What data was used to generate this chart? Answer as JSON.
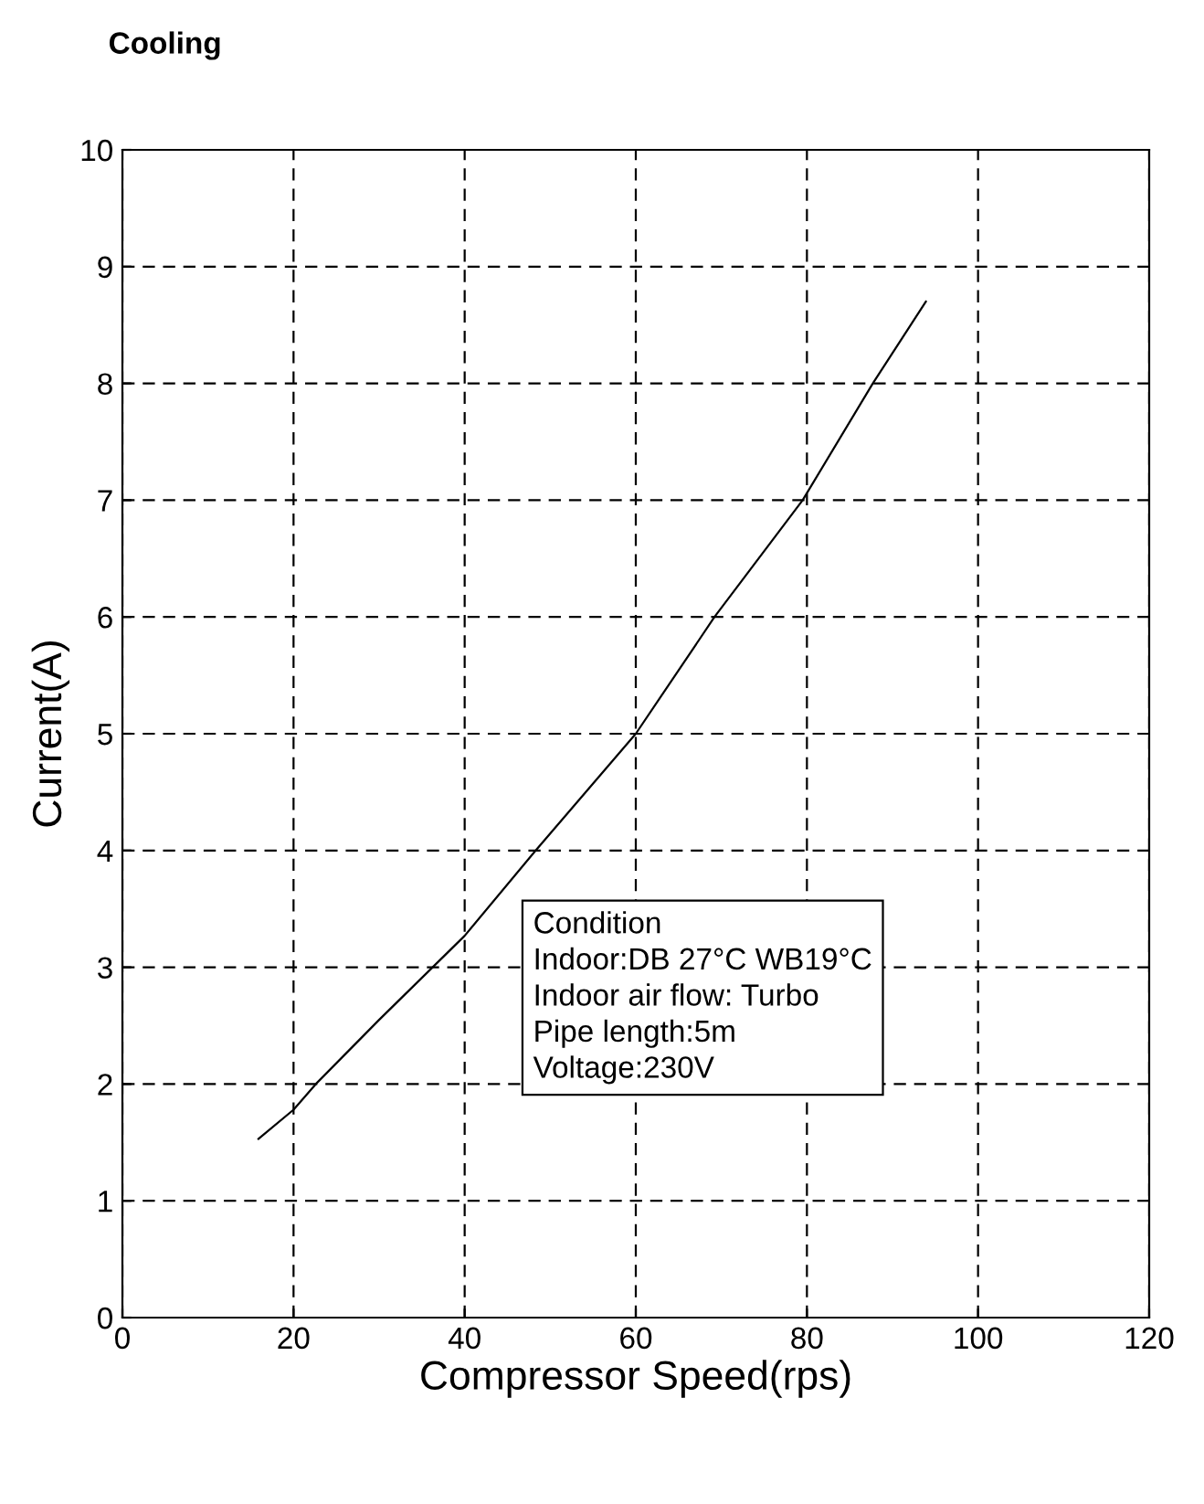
{
  "chart_data": {
    "type": "line",
    "title": "Cooling",
    "xlabel": "Compressor Speed(rps)",
    "ylabel": "Current(A)",
    "annotations": [
      "Condition\nIndoor:DB 27°C WB19°C\nIndoor air flow: Turbo\nPipe length:5m\nVoltage:230V"
    ],
    "series": [
      {
        "color": "#000000",
        "x": [
          15.9,
          20,
          22.6,
          30,
          40,
          48.3,
          60,
          69.2,
          79.5,
          87.7,
          93.9
        ],
        "values": [
          1.53,
          1.78,
          2.0,
          2.55,
          3.27,
          4.0,
          5.0,
          6.0,
          7.0,
          8.0,
          8.7
        ]
      }
    ],
    "xlim": [
      0,
      120
    ],
    "xticks": [
      0,
      20,
      40,
      60,
      80,
      100,
      120
    ],
    "ylim": [
      0,
      10
    ],
    "yticks": [
      0,
      1,
      2,
      3,
      4,
      5,
      6,
      7,
      8,
      9,
      10
    ],
    "grid": true,
    "line_style": "solid",
    "marker": "none"
  }
}
